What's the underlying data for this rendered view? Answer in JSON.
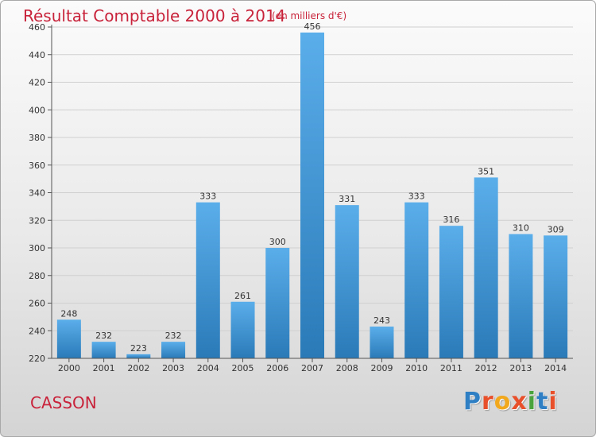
{
  "title": "Résultat Comptable 2000 à 2014",
  "subtitle": "(en milliers d'€)",
  "commune": "CASSON",
  "logo": {
    "letters": [
      "P",
      "r",
      "o",
      "x",
      "i",
      "t",
      "i"
    ]
  },
  "colors": {
    "accent": "#c8233a",
    "bar_top": "#5aaeea",
    "bar_bottom": "#2a7ab8",
    "logo_letters": [
      "#2e7fc4",
      "#e8502b",
      "#f2a81d",
      "#e8502b",
      "#4aa33c",
      "#2e7fc4",
      "#e8502b"
    ]
  },
  "chart_data": {
    "type": "bar",
    "title": "Résultat Comptable 2000 à 2014",
    "subtitle": "(en milliers d'€)",
    "xlabel": "",
    "ylabel": "",
    "categories": [
      "2000",
      "2001",
      "2002",
      "2003",
      "2004",
      "2005",
      "2006",
      "2007",
      "2008",
      "2009",
      "2010",
      "2011",
      "2012",
      "2013",
      "2014"
    ],
    "values": [
      248,
      232,
      223,
      232,
      333,
      261,
      300,
      456,
      331,
      243,
      333,
      316,
      351,
      310,
      309
    ],
    "ylim": [
      220,
      460
    ],
    "yticks": [
      220,
      240,
      260,
      280,
      300,
      320,
      340,
      360,
      380,
      400,
      420,
      440,
      460
    ],
    "grid": true,
    "legend": "none"
  }
}
